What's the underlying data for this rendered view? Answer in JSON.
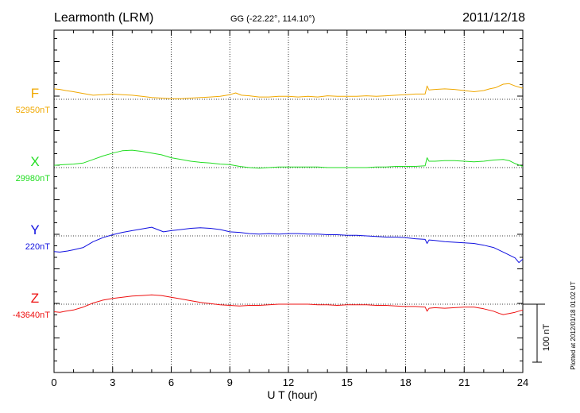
{
  "header": {
    "station": "Learmonth (LRM)",
    "coords": "GG (-22.22°, 114.10°)",
    "date": "2011/12/18"
  },
  "footer": {
    "plotted": "Plotted at 2012/01/18 01:02 UT",
    "scale_label": "100 nT"
  },
  "chart_data": {
    "type": "line",
    "xlabel": "U T (hour)",
    "xlim": [
      0,
      24
    ],
    "xticks": [
      "0",
      "3",
      "6",
      "9",
      "12",
      "15",
      "18",
      "21",
      "24"
    ],
    "grid": true,
    "scale_bar_nT": 100,
    "series": [
      {
        "name": "F",
        "baseline_label": "52950nT",
        "color": "#f0a800",
        "x": [
          0,
          0.3,
          0.6,
          1,
          1.5,
          2,
          2.5,
          3,
          3.5,
          4,
          4.5,
          5,
          5.5,
          6,
          6.5,
          7,
          7.5,
          8,
          8.5,
          9,
          9.3,
          9.6,
          10,
          10.5,
          11,
          11.5,
          12,
          12.5,
          13,
          13.5,
          14,
          14.5,
          15,
          15.5,
          16,
          16.5,
          17,
          17.5,
          18,
          18.5,
          19,
          19.1,
          19.2,
          19.5,
          20,
          20.5,
          21,
          21.5,
          22,
          22.3,
          22.6,
          23,
          23.3,
          23.6,
          24
        ],
        "y": [
          18,
          17,
          15,
          13,
          10,
          7,
          8,
          9,
          8,
          7,
          5,
          3,
          2,
          1,
          1,
          2,
          3,
          4,
          5,
          8,
          11,
          7,
          6,
          4,
          4,
          5,
          5,
          4,
          5,
          4,
          6,
          5,
          5,
          5,
          6,
          5,
          6,
          7,
          8,
          9,
          9,
          23,
          16,
          17,
          18,
          17,
          15,
          13,
          15,
          18,
          20,
          26,
          27,
          23,
          19
        ]
      },
      {
        "name": "X",
        "baseline_label": "29980nT",
        "color": "#22dd22",
        "x": [
          0,
          0.5,
          1,
          1.5,
          2,
          2.5,
          3,
          3.5,
          4,
          4.5,
          5,
          5.5,
          6,
          6.5,
          7,
          7.5,
          8,
          8.5,
          9,
          9.5,
          10,
          10.5,
          11,
          11.5,
          12,
          12.5,
          13,
          13.5,
          14,
          14.5,
          15,
          15.5,
          16,
          16.5,
          17,
          17.5,
          18,
          18.5,
          19,
          19.1,
          19.2,
          19.5,
          20,
          20.5,
          21,
          21.5,
          22,
          22.5,
          23,
          23.3,
          23.6,
          24
        ],
        "y": [
          4,
          5,
          6,
          8,
          14,
          20,
          25,
          29,
          30,
          28,
          25,
          22,
          17,
          14,
          11,
          9,
          8,
          6,
          5,
          2,
          0,
          -1,
          0,
          1,
          1,
          1,
          1,
          1,
          0,
          0,
          0,
          0,
          0,
          1,
          1,
          2,
          2,
          2,
          3,
          17,
          11,
          11,
          12,
          12,
          11,
          10,
          11,
          13,
          14,
          12,
          7,
          2
        ]
      },
      {
        "name": "Y",
        "baseline_label": "220nT",
        "color": "#1010e0",
        "x": [
          0,
          0.3,
          0.7,
          1,
          1.5,
          2,
          2.5,
          3,
          3.5,
          4,
          4.5,
          5,
          5.3,
          5.6,
          6,
          6.5,
          7,
          7.5,
          8,
          8.5,
          9,
          9.5,
          10,
          10.5,
          11,
          11.5,
          12,
          12.5,
          13,
          13.5,
          14,
          14.5,
          15,
          15.5,
          16,
          16.5,
          17,
          17.5,
          18,
          18.5,
          19,
          19.1,
          19.2,
          19.5,
          20,
          20.5,
          21,
          21.5,
          22,
          22.5,
          23,
          23.3,
          23.6,
          23.8,
          24
        ],
        "y": [
          -27,
          -28,
          -26,
          -24,
          -20,
          -10,
          -3,
          2,
          6,
          9,
          12,
          15,
          11,
          7,
          9,
          11,
          13,
          14,
          13,
          11,
          7,
          6,
          4,
          3,
          4,
          3,
          4,
          4,
          3,
          3,
          2,
          2,
          1,
          1,
          0,
          -1,
          -2,
          -2,
          -3,
          -5,
          -6,
          -13,
          -7,
          -8,
          -10,
          -11,
          -12,
          -13,
          -16,
          -20,
          -28,
          -33,
          -38,
          -46,
          -40
        ]
      },
      {
        "name": "Z",
        "baseline_label": "-43640nT",
        "color": "#ee1111",
        "x": [
          0,
          0.3,
          0.6,
          1,
          1.5,
          2,
          2.5,
          3,
          3.5,
          4,
          4.5,
          5,
          5.5,
          6,
          6.5,
          7,
          7.5,
          8,
          8.5,
          9,
          9.5,
          10,
          10.5,
          11,
          11.5,
          12,
          12.5,
          13,
          13.5,
          14,
          14.5,
          15,
          15.5,
          16,
          16.5,
          17,
          17.5,
          18,
          18.5,
          19,
          19.1,
          19.2,
          19.5,
          20,
          20.5,
          21,
          21.5,
          22,
          22.5,
          22.8,
          23,
          23.3,
          23.6,
          24
        ],
        "y": [
          -13,
          -14,
          -12,
          -10,
          -5,
          2,
          7,
          10,
          12,
          14,
          15,
          16,
          15,
          12,
          9,
          6,
          3,
          1,
          -1,
          -2,
          -3,
          -2,
          -2,
          -1,
          0,
          0,
          0,
          0,
          -1,
          -1,
          -2,
          -1,
          -1,
          -1,
          -2,
          -2,
          -3,
          -4,
          -4,
          -5,
          -12,
          -7,
          -6,
          -7,
          -6,
          -5,
          -5,
          -8,
          -12,
          -16,
          -18,
          -16,
          -14,
          -10
        ]
      }
    ]
  }
}
